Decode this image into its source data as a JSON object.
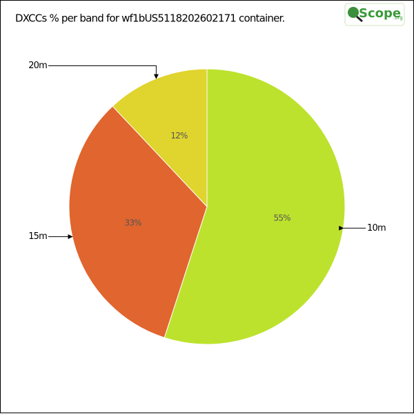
{
  "chart_data": {
    "type": "pie",
    "title": "DXCCs % per band for wf1bUS5118202602171 container.",
    "logo": {
      "text": "Scope",
      "suffix": ".org"
    },
    "categories": [
      "10m",
      "15m",
      "20m"
    ],
    "values": [
      55,
      33,
      12
    ],
    "value_labels": [
      "55%",
      "33%",
      "12%"
    ],
    "colors": [
      "#bde22e",
      "#e0652e",
      "#e0d42e"
    ]
  }
}
